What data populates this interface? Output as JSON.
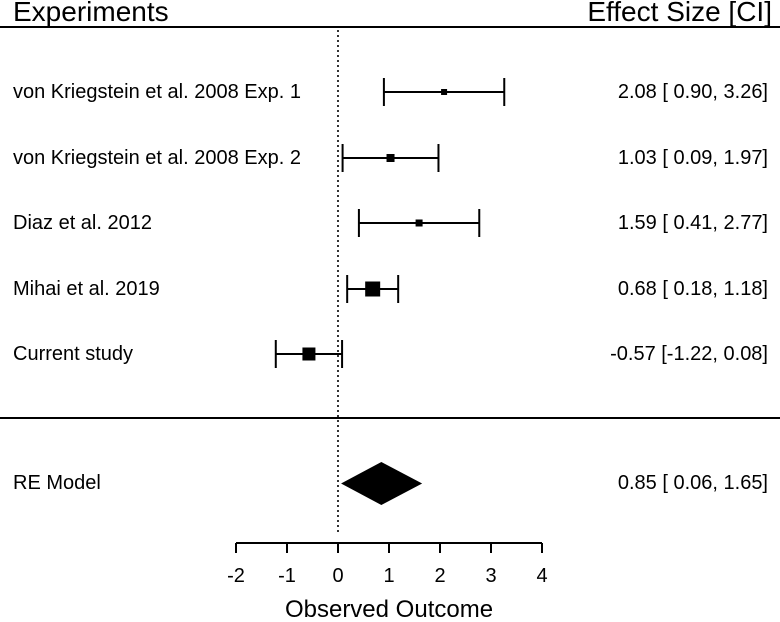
{
  "header": {
    "left": "Experiments",
    "right": "Effect Size [CI]"
  },
  "chart_data": {
    "type": "forest",
    "title": "",
    "xlabel": "Observed Outcome",
    "xlim": [
      -2,
      4
    ],
    "ticks": [
      -2,
      -1,
      0,
      1,
      2,
      3,
      4
    ],
    "reference_line": 0,
    "colors": {
      "foreground": "#000000",
      "background": "#ffffff"
    },
    "studies": [
      {
        "label": "von Kriegstein et al. 2008 Exp. 1",
        "effect": 2.08,
        "ci_lower": 0.9,
        "ci_upper": 3.26,
        "display": "2.08 [ 0.90, 3.26]",
        "marker_size": 6
      },
      {
        "label": "von Kriegstein et al. 2008 Exp. 2",
        "effect": 1.03,
        "ci_lower": 0.09,
        "ci_upper": 1.97,
        "display": "1.03 [ 0.09, 1.97]",
        "marker_size": 8
      },
      {
        "label": "Diaz et al. 2012",
        "effect": 1.59,
        "ci_lower": 0.41,
        "ci_upper": 2.77,
        "display": "1.59 [ 0.41, 2.77]",
        "marker_size": 7
      },
      {
        "label": "Mihai et al. 2019",
        "effect": 0.68,
        "ci_lower": 0.18,
        "ci_upper": 1.18,
        "display": "0.68 [ 0.18, 1.18]",
        "marker_size": 15
      },
      {
        "label": "Current study",
        "effect": -0.57,
        "ci_lower": -1.22,
        "ci_upper": 0.08,
        "display": "-0.57 [-1.22, 0.08]",
        "marker_size": 13
      }
    ],
    "summary": {
      "label": "RE Model",
      "effect": 0.85,
      "ci_lower": 0.06,
      "ci_upper": 1.65,
      "display": "0.85 [ 0.06, 1.65]"
    }
  }
}
